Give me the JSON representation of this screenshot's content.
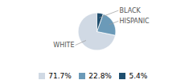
{
  "chart_data": {
    "type": "pie",
    "categories": [
      "WHITE",
      "HISPANIC",
      "BLACK"
    ],
    "values": [
      71.7,
      22.8,
      5.4
    ],
    "value_labels": [
      "71.7%",
      "22.8%",
      "5.4%"
    ],
    "colors": [
      "#d0d9e4",
      "#6b9ab8",
      "#1f4e6e"
    ],
    "legend": "bottom"
  }
}
